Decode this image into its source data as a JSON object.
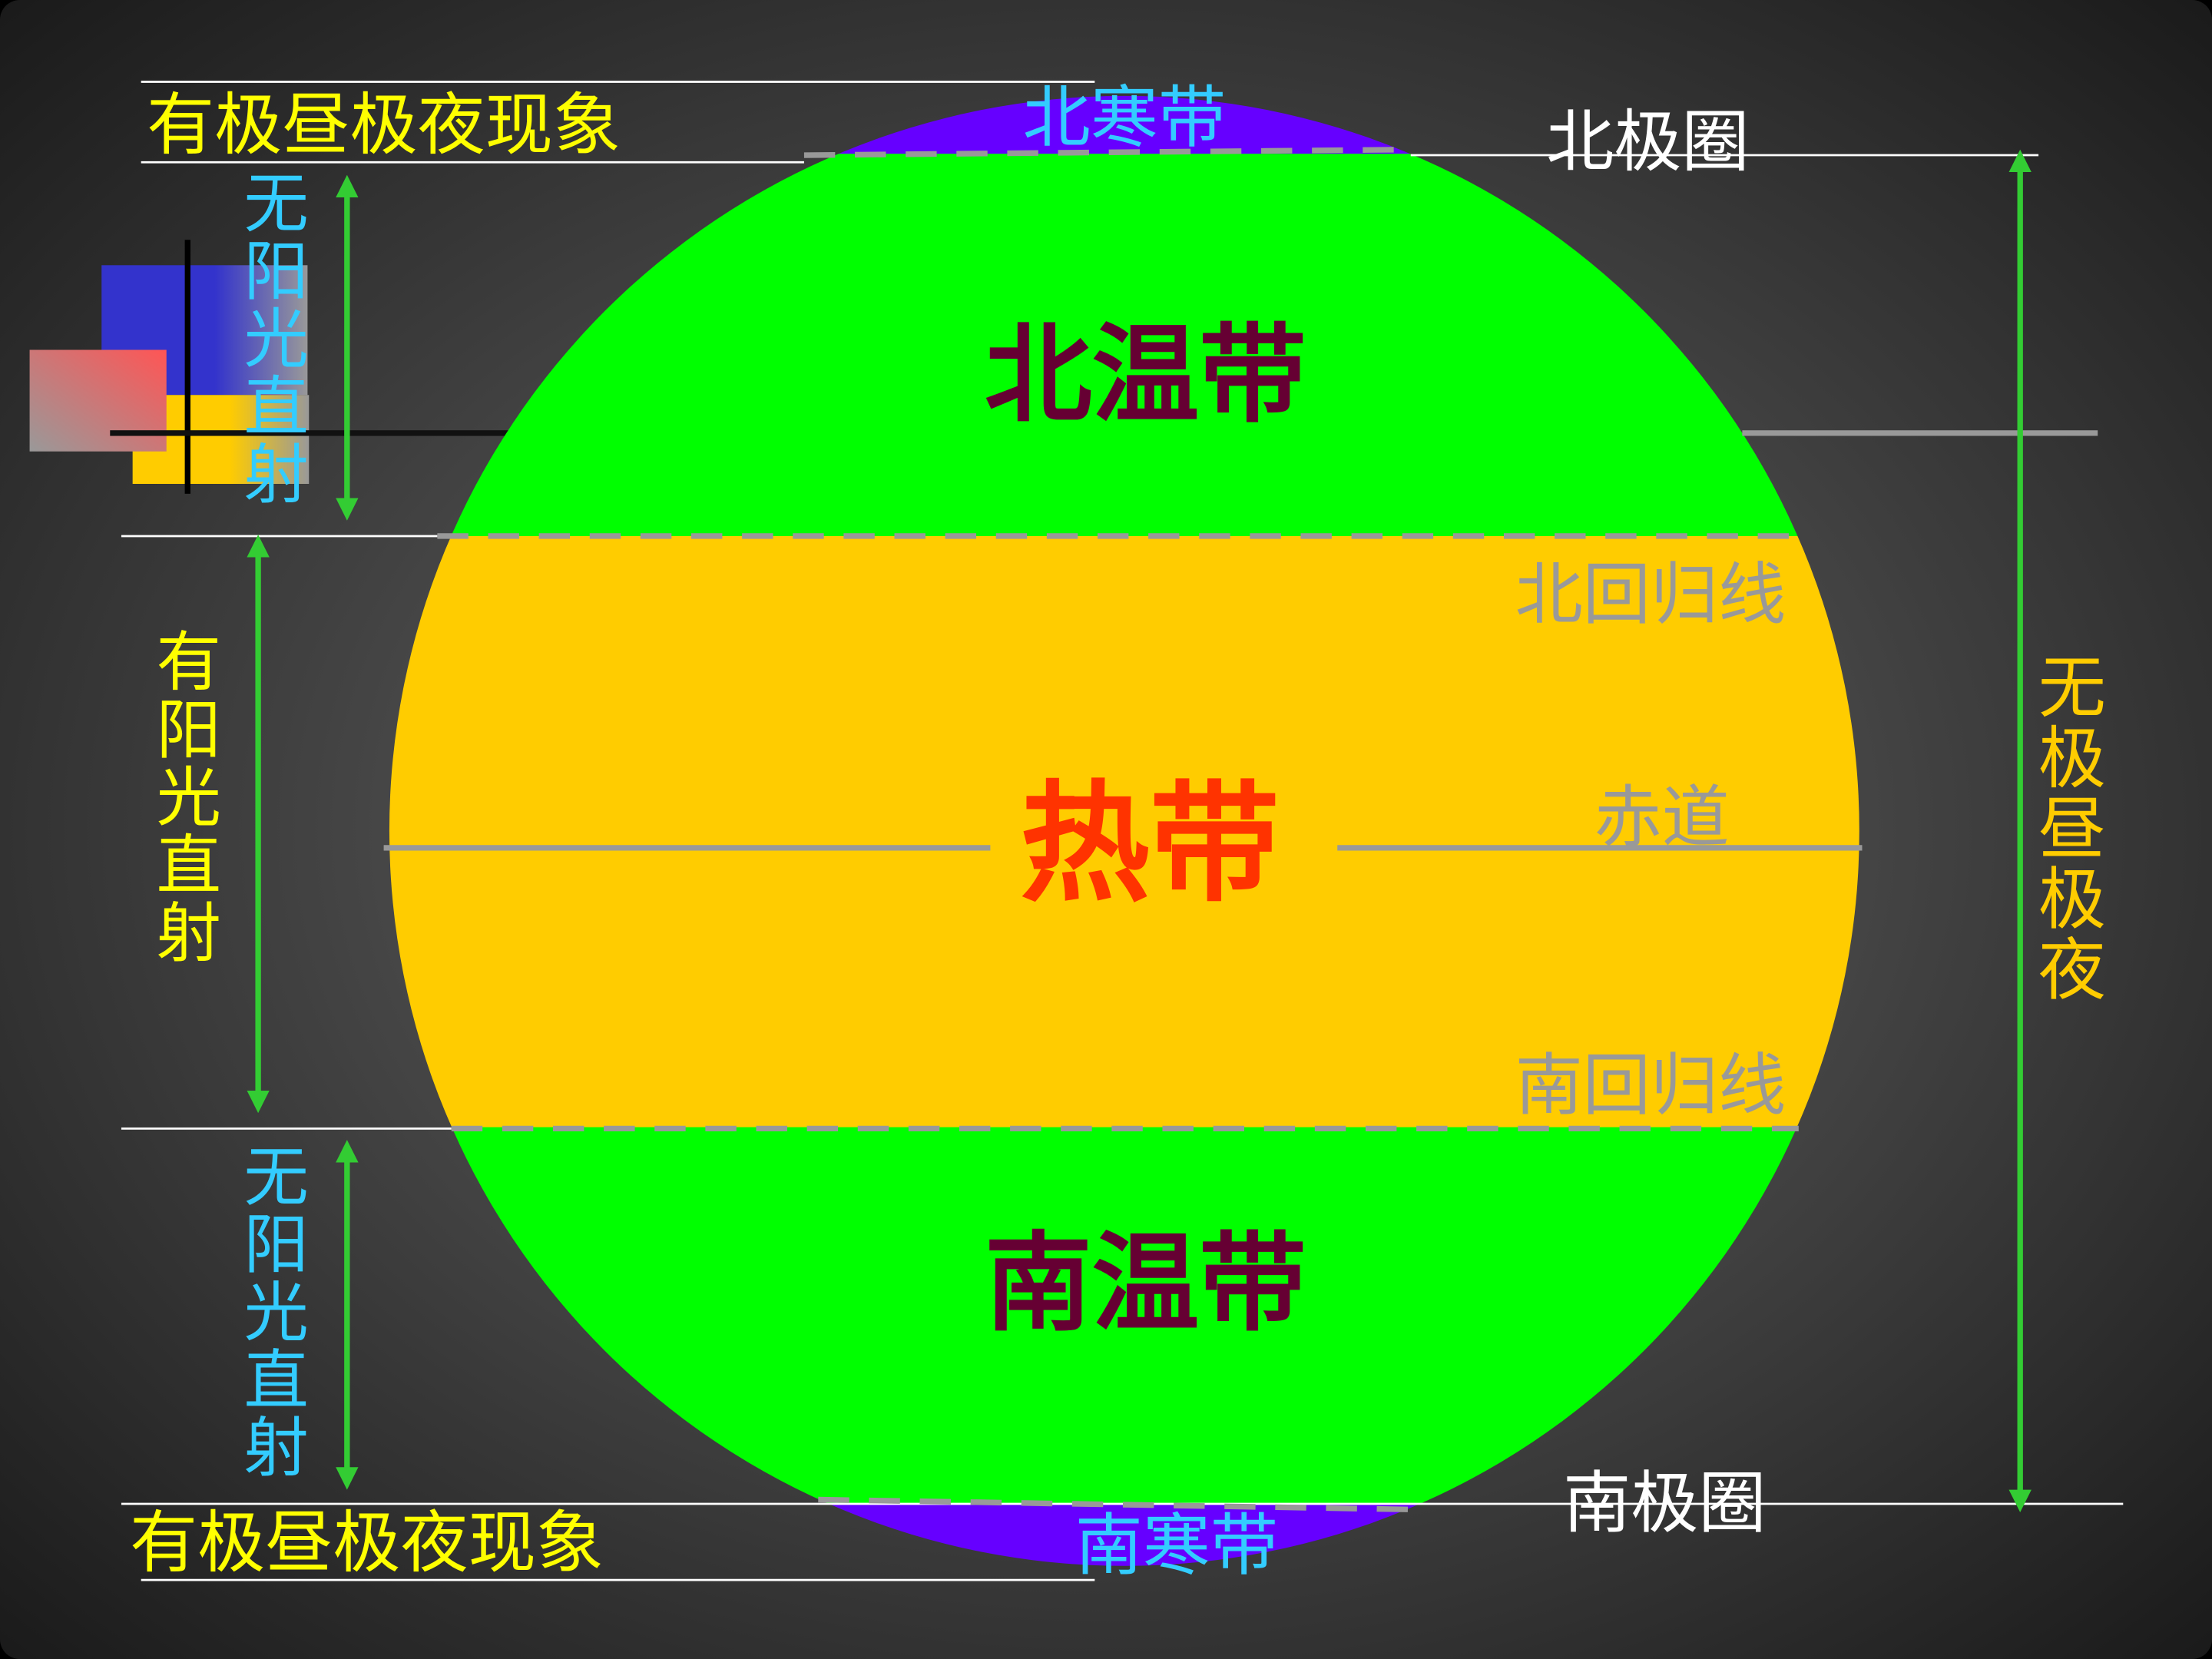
{
  "colors": {
    "cold_zone": "#6600FF",
    "temperate_zone": "#00FF00",
    "tropical_zone": "#FFCC00",
    "background_center": "#6a6a6a",
    "background_edge": "#1a1a1a",
    "arrow": "#33CC33"
  },
  "zones": {
    "north_frigid": "北寒带",
    "north_temperate": "北温带",
    "tropical": "热带",
    "south_temperate": "南温带",
    "south_frigid": "南寒带"
  },
  "lines": {
    "arctic_circle": "北极圈",
    "tropic_cancer": "北回归线",
    "equator": "赤道",
    "tropic_capricorn": "南回归线",
    "antarctic_circle": "南极圈"
  },
  "annotations": {
    "polar_day_night_top": "有极昼极夜现象",
    "no_direct_sun_north": "无阳光直射",
    "direct_sun": "有阳光直射",
    "no_direct_sun_south": "无阳光直射",
    "polar_day_night_bottom": "有极昼极夜现象",
    "no_polar_day_night": "无极昼极夜"
  }
}
